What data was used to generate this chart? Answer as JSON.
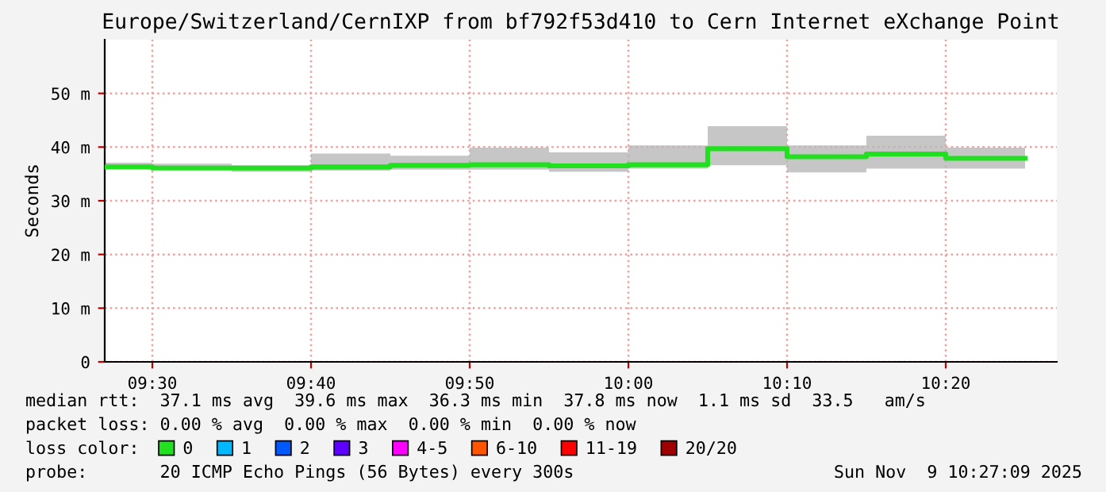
{
  "chart_data": {
    "type": "step",
    "title": "Europe/Switzerland/CernIXP from bf792f53d410 to Cern Internet eXchange Point",
    "ylabel": "Seconds",
    "x": [
      "2025-11-09T09:27",
      "2025-11-09T09:30",
      "2025-11-09T09:35",
      "2025-11-09T09:40",
      "2025-11-09T09:45",
      "2025-11-09T09:50",
      "2025-11-09T09:55",
      "2025-11-09T10:00",
      "2025-11-09T10:05",
      "2025-11-09T10:10",
      "2025-11-09T10:15",
      "2025-11-09T10:20",
      "2025-11-09T10:25"
    ],
    "series": [
      {
        "name": "0",
        "color": "#20e020",
        "values": [
          36.3,
          36.1,
          36.1,
          36.3,
          36.6,
          36.7,
          36.5,
          36.7,
          39.7,
          38.2,
          38.7,
          37.9,
          37.9
        ],
        "lower": [
          35.9,
          35.8,
          35.4,
          35.6,
          35.8,
          35.8,
          35.4,
          36.0,
          36.6,
          35.3,
          36.0,
          36.0,
          36.0
        ],
        "upper": [
          37.1,
          36.9,
          36.6,
          38.8,
          38.4,
          39.9,
          39.0,
          40.3,
          43.9,
          40.3,
          42.1,
          39.9,
          39.9
        ]
      },
      {
        "name": "1",
        "color": "#00b8ff",
        "values": [
          null,
          null,
          null,
          null,
          null,
          null,
          null,
          null,
          null,
          null,
          null,
          null,
          null
        ]
      },
      {
        "name": "2",
        "color": "#0059ff",
        "values": [
          null,
          null,
          null,
          null,
          null,
          null,
          null,
          null,
          null,
          null,
          null,
          null,
          null
        ]
      },
      {
        "name": "3",
        "color": "#5e00ff",
        "values": [
          null,
          null,
          null,
          null,
          null,
          null,
          null,
          null,
          null,
          null,
          null,
          null,
          null
        ]
      },
      {
        "name": "4-5",
        "color": "#ff00ff",
        "values": [
          null,
          null,
          null,
          null,
          null,
          null,
          null,
          null,
          null,
          null,
          null,
          null,
          null
        ]
      },
      {
        "name": "6-10",
        "color": "#ff5500",
        "values": [
          null,
          null,
          null,
          null,
          null,
          null,
          null,
          null,
          null,
          null,
          null,
          null,
          null
        ]
      },
      {
        "name": "11-19",
        "color": "#ff0000",
        "values": [
          null,
          null,
          null,
          null,
          null,
          null,
          null,
          null,
          null,
          null,
          null,
          null,
          null
        ]
      },
      {
        "name": "20/20",
        "color": "#a10000",
        "values": [
          null,
          null,
          null,
          null,
          null,
          null,
          null,
          null,
          null,
          null,
          null,
          null,
          null
        ]
      }
    ],
    "xlim": [
      "2025-11-09T09:27",
      "2025-11-09T10:27"
    ],
    "xticks": [
      {
        "value": "2025-11-09T09:30",
        "label": "09:30"
      },
      {
        "value": "2025-11-09T09:40",
        "label": "09:40"
      },
      {
        "value": "2025-11-09T09:50",
        "label": "09:50"
      },
      {
        "value": "2025-11-09T10:00",
        "label": "10:00"
      },
      {
        "value": "2025-11-09T10:10",
        "label": "10:10"
      },
      {
        "value": "2025-11-09T10:20",
        "label": "10:20"
      }
    ],
    "ylim": [
      0,
      60
    ],
    "yticks": [
      0,
      {
        "value": 10,
        "label": "10 m"
      },
      {
        "value": 20,
        "label": "20 m"
      },
      {
        "value": 30,
        "label": "30 m"
      },
      {
        "value": 40,
        "label": "40 m"
      },
      {
        "value": 50,
        "label": "50 m"
      }
    ],
    "grid": true,
    "legend": "bottom",
    "annotations": [
      "median rtt:  37.1 ms avg  39.6 ms max  36.3 ms min  37.8 ms now  1.1 ms sd  33.5   am/s",
      "packet loss: 0.00 % avg  0.00 % max  0.00 % min  0.00 % now",
      "loss color:",
      "probe:       20 ICMP Echo Pings (56 Bytes) every 300s",
      "Sun Nov  9 10:27:09 2025"
    ]
  }
}
